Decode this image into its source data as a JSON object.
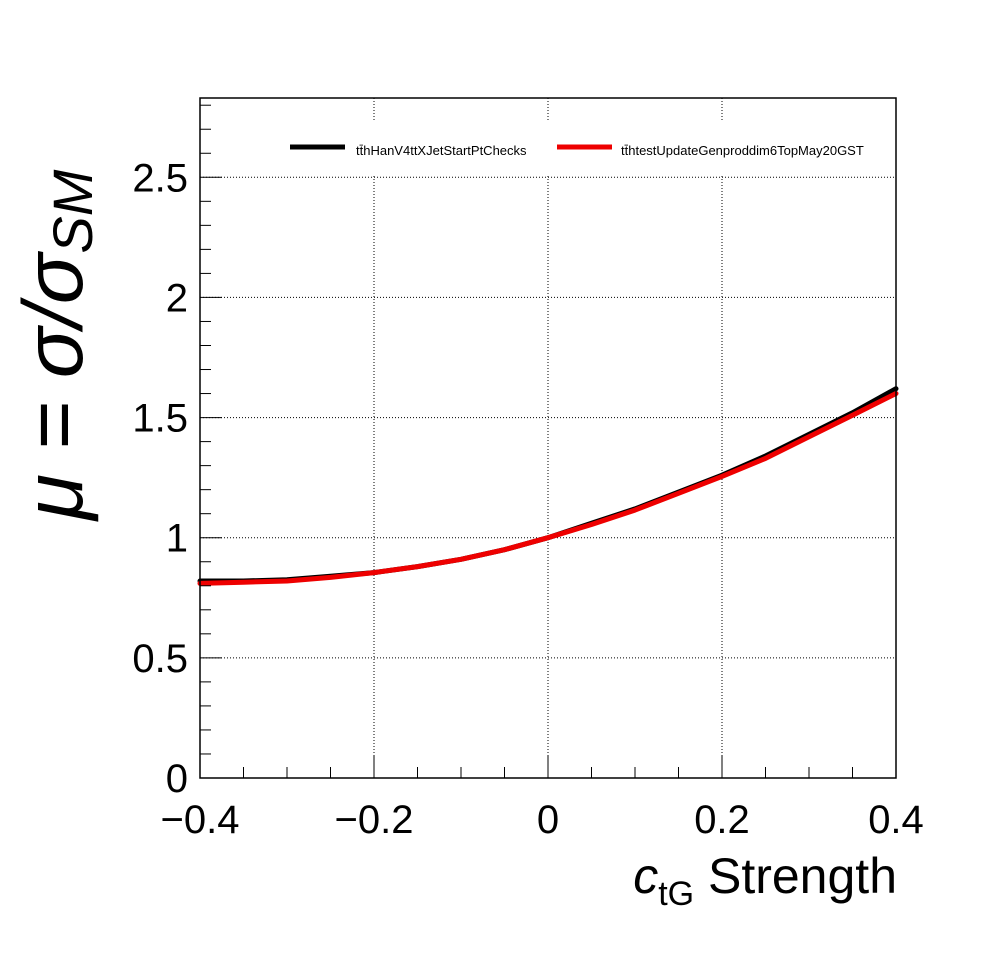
{
  "chart_data": {
    "type": "line",
    "xlabel": "c",
    "xlabel_sub": "tG",
    "xlabel_suffix": " Strength",
    "ylabel": "μ = σ/σ",
    "ylabel_sub": "SM",
    "xlim": [
      -0.4,
      0.4
    ],
    "ylim": [
      0,
      2.83
    ],
    "xticks": [
      -0.4,
      -0.2,
      0,
      0.2,
      0.4
    ],
    "xtick_labels": [
      "−0.4",
      "−0.2",
      "0",
      "0.2",
      "0.4"
    ],
    "yticks": [
      0,
      0.5,
      1,
      1.5,
      2,
      2.5
    ],
    "ytick_labels": [
      "0",
      "0.5",
      "1",
      "1.5",
      "2",
      "2.5"
    ],
    "grid": true,
    "legend_position": "top-right",
    "series": [
      {
        "name": "tt̄hHanV4ttXJetStartPtChecks",
        "color": "#000000",
        "x": [
          -0.4,
          -0.35,
          -0.3,
          -0.25,
          -0.2,
          -0.15,
          -0.1,
          -0.05,
          0,
          0.05,
          0.1,
          0.15,
          0.2,
          0.25,
          0.3,
          0.35,
          0.4
        ],
        "y": [
          0.82,
          0.82,
          0.825,
          0.84,
          0.855,
          0.88,
          0.91,
          0.95,
          1.0,
          1.06,
          1.12,
          1.19,
          1.26,
          1.34,
          1.43,
          1.52,
          1.62
        ]
      },
      {
        "name": "tt̄htestUpdateGenproddim6TopMay20GST",
        "color": "#ee0000",
        "x": [
          -0.4,
          -0.35,
          -0.3,
          -0.25,
          -0.2,
          -0.15,
          -0.1,
          -0.05,
          0,
          0.05,
          0.1,
          0.15,
          0.2,
          0.25,
          0.3,
          0.35,
          0.4
        ],
        "y": [
          0.81,
          0.815,
          0.82,
          0.835,
          0.855,
          0.88,
          0.91,
          0.95,
          1.0,
          1.055,
          1.115,
          1.185,
          1.255,
          1.33,
          1.42,
          1.51,
          1.6
        ]
      }
    ]
  }
}
